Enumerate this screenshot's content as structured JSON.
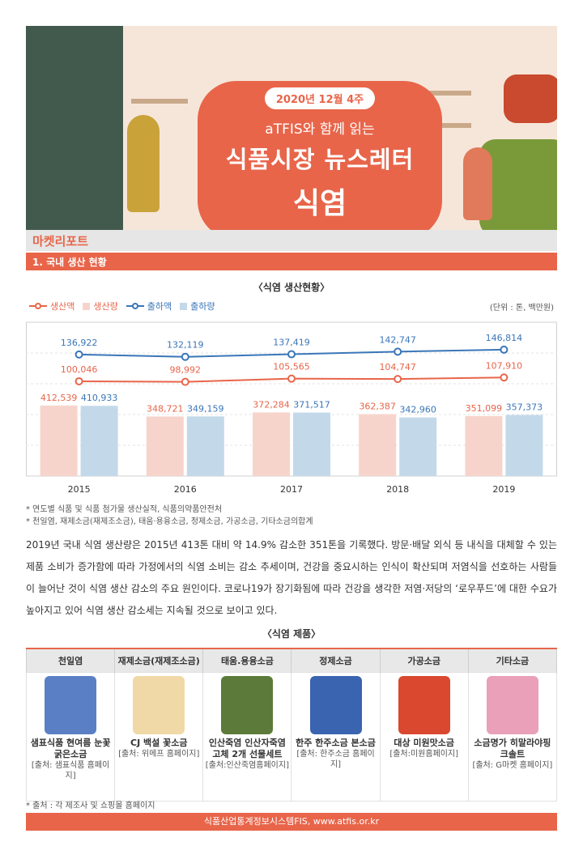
{
  "hero": {
    "date": "2020년 12월 4주",
    "subtitle": "aTFIS와 함께 읽는",
    "title": "식품시장 뉴스레터",
    "topic": "식염"
  },
  "section": {
    "title": "마켓리포트",
    "subtitle": "1. 국내 생산 현황"
  },
  "chart_title": "〈식염 생산현황〉",
  "unit": "(단위 : 톤, 백만원)",
  "colors": {
    "accent": "#e8654a",
    "production_value_line": "#e8654a",
    "production_volume_bar": "#f7d4cb",
    "shipment_value_line": "#3a76b8",
    "shipment_volume_bar": "#c3d9ea"
  },
  "chart_data": {
    "type": "bar",
    "categories": [
      "2015",
      "2016",
      "2017",
      "2018",
      "2019"
    ],
    "series": [
      {
        "name": "생산액",
        "kind": "line",
        "values": [
          100046,
          98992,
          105565,
          104747,
          107910
        ],
        "labels": [
          "100,046",
          "98,992",
          "105,565",
          "104,747",
          "107,910"
        ]
      },
      {
        "name": "생산량",
        "kind": "bar",
        "values": [
          412539,
          348721,
          372284,
          362387,
          351099
        ],
        "labels": [
          "412,539",
          "348,721",
          "372,284",
          "362,387",
          "351,099"
        ]
      },
      {
        "name": "출하액",
        "kind": "line",
        "values": [
          136922,
          132119,
          137419,
          142747,
          146814
        ],
        "labels": [
          "136,922",
          "132,119",
          "137,419",
          "142,747",
          "146,814"
        ]
      },
      {
        "name": "출하량",
        "kind": "bar",
        "values": [
          410933,
          349159,
          371517,
          342960,
          357373
        ],
        "labels": [
          "410,933",
          "349,159",
          "371,517",
          "342,960",
          "357,373"
        ]
      }
    ],
    "legend": [
      "생산액",
      "생산량",
      "출하액",
      "출하량"
    ],
    "legend_position": "top-left",
    "grid": true
  },
  "notes": [
    "* 연도별 식품 및 식품 첨가물 생산실적, 식품의약품안전처",
    "* 천일염, 재제소금(재제조소금), 태움·용융소금, 정제소금, 가공소금, 기타소금의합계"
  ],
  "body_text": "2019년 국내 식염 생산량은 2015년 413톤 대비 약 14.9% 감소한 351톤을 기록했다. 방문·배달 외식 등 내식을 대체할 수 있는 제품 소비가 증가함에 따라 가정에서의 식염 소비는 감소 추세이며, 건강을 중요시하는 인식이 확산되며 저염식을 선호하는 사람들이 늘어난 것이 식염 생산 감소의 주요 원인이다. 코로나19가 장기화됨에 따라 건강을 생각한 저염·저당의 ‘로우푸드’에 대한 수요가 높아지고 있어 식염 생산 감소세는 지속될 것으로 보이고 있다.",
  "products_title": "〈식염 제품〉",
  "products": [
    {
      "category": "천일염",
      "name": "샘표식품 현여름 눈꽃 굵은소금",
      "source": "[출처: 샘표식품 홈페이지]",
      "color": "#5a7fc4"
    },
    {
      "category": "재제소금(재제조소금)",
      "name": "CJ 백설 꽃소금",
      "source": "[출처: 위메프 홈페이지]",
      "color": "#f0d9a6"
    },
    {
      "category": "태움.용융소금",
      "name": "인산죽염 인산자죽염 고체 2개 선물세트",
      "source": "[출처:인산죽염홈페이지]",
      "color": "#5c7a3a"
    },
    {
      "category": "정제소금",
      "name": "한주 한주소금 본소금",
      "source": "[출처: 한주소금 홈페이지]",
      "color": "#3a63b0"
    },
    {
      "category": "가공소금",
      "name": "대상 미원맛소금",
      "source": "[출처:미원홈페이지]",
      "color": "#d9482f"
    },
    {
      "category": "기타소금",
      "name": "소금명가 히말라야핑크솔트",
      "source": "[출처: G마켓 홈페이지]",
      "color": "#e9a0b8"
    }
  ],
  "source_note": "* 출처 : 각 제조사 및 쇼핑몰 홈페이지",
  "footer": "식품산업통계정보시스템FIS, www.atfis.or.kr"
}
